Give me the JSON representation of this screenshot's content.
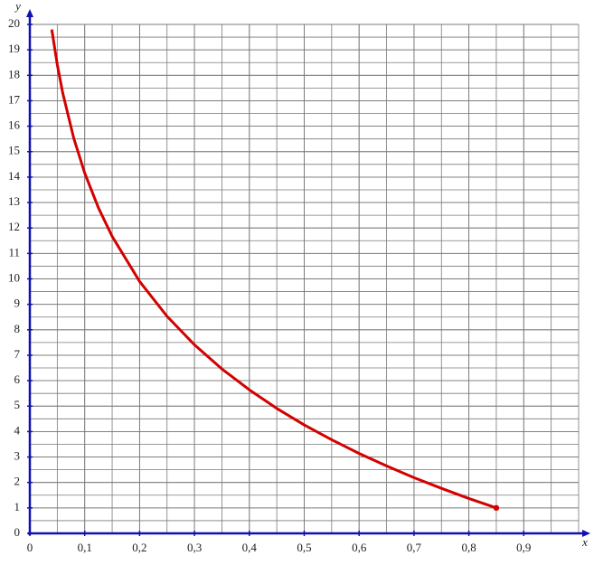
{
  "chart_data": {
    "type": "line",
    "x_label": "x",
    "y_label": "y",
    "x": [
      0.04,
      0.05,
      0.06,
      0.08,
      0.1,
      0.125,
      0.15,
      0.2,
      0.25,
      0.3,
      0.35,
      0.4,
      0.45,
      0.5,
      0.55,
      0.6,
      0.65,
      0.7,
      0.75,
      0.8,
      0.85
    ],
    "series": [
      {
        "color": "#d40000",
        "values": [
          19.8,
          18.42,
          17.3,
          15.53,
          14.16,
          12.79,
          11.67,
          9.9,
          8.53,
          7.41,
          6.46,
          5.64,
          4.91,
          4.26,
          3.68,
          3.14,
          2.65,
          2.19,
          1.77,
          1.37,
          1.0
        ]
      }
    ],
    "xlim": [
      0,
      1
    ],
    "ylim": [
      0,
      20
    ],
    "xticks": [
      0,
      {
        "value": 0.1,
        "label": "0,1"
      },
      {
        "value": 0.2,
        "label": "0,2"
      },
      {
        "value": 0.3,
        "label": "0,3"
      },
      {
        "value": 0.4,
        "label": "0,4"
      },
      {
        "value": 0.5,
        "label": "0,5"
      },
      {
        "value": 0.6,
        "label": "0,6"
      },
      {
        "value": 0.7,
        "label": "0,7"
      },
      {
        "value": 0.8,
        "label": "0,8"
      },
      {
        "value": 0.9,
        "label": "0,9"
      }
    ],
    "yticks": [
      0,
      1,
      2,
      3,
      4,
      5,
      6,
      7,
      8,
      9,
      10,
      11,
      12,
      13,
      14,
      15,
      16,
      17,
      18,
      19,
      20
    ],
    "grid": true,
    "axis_color": "#1010b0",
    "grid_color": "#7a7a7a"
  }
}
